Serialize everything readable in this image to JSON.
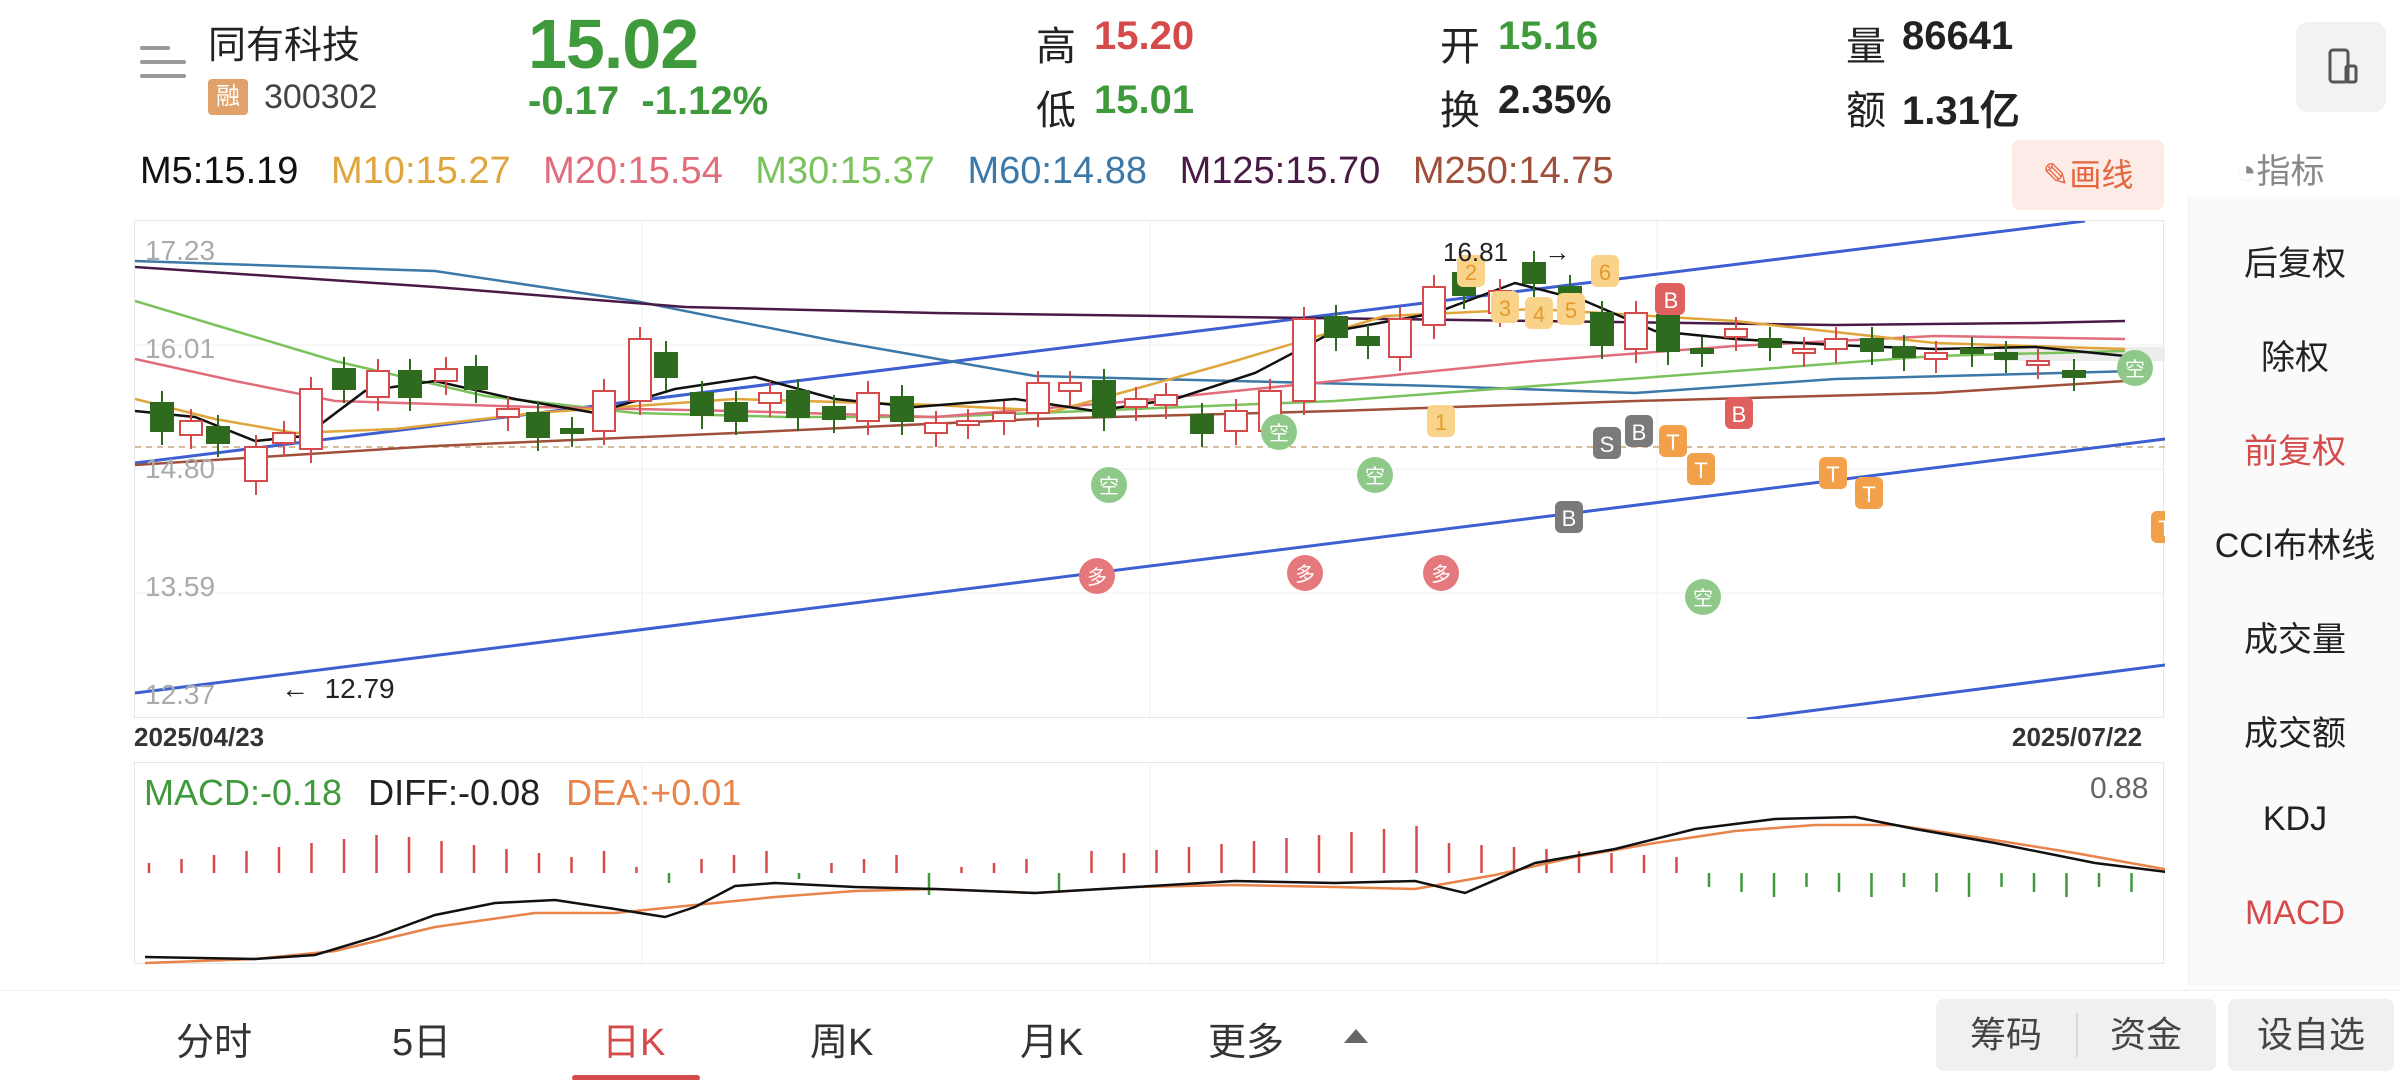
{
  "header": {
    "stock_name": "同有科技",
    "badge": "融",
    "stock_code": "300302",
    "price": "15.02",
    "change": "-0.17",
    "change_pct": "-1.12%",
    "high_label": "高",
    "high_value": "15.20",
    "low_label": "低",
    "low_value": "15.01",
    "open_label": "开",
    "open_value": "15.16",
    "turnover_label": "换",
    "turnover_value": "2.35%",
    "volume_label": "量",
    "volume_value": "86641",
    "amount_label": "额",
    "amount_value": "1.31亿"
  },
  "ma": {
    "m5": "M5:15.19",
    "m10": "M10:15.27",
    "m20": "M20:15.54",
    "m30": "M30:15.37",
    "m60": "M60:14.88",
    "m125": "M125:15.70",
    "m250": "M250:14.75"
  },
  "draw_button": "画线",
  "indicator_header": "指标",
  "right_panel": [
    {
      "label": "后复权",
      "active": false
    },
    {
      "label": "除权",
      "active": false
    },
    {
      "label": "前复权",
      "active": true
    },
    {
      "label": "CCI布林线",
      "active": false
    },
    {
      "label": "成交量",
      "active": false
    },
    {
      "label": "成交额",
      "active": false
    },
    {
      "label": "KDJ",
      "active": false
    },
    {
      "label": "MACD",
      "active": true
    }
  ],
  "kline": {
    "y_labels": [
      "17.23",
      "16.01",
      "14.80",
      "13.59",
      "12.37"
    ],
    "start_date": "2025/04/23",
    "end_date": "2025/07/22",
    "low_marker": "12.79",
    "high_marker": "16.81"
  },
  "macd": {
    "macd": "MACD:-0.18",
    "diff": "DIFF:-0.08",
    "dea": "DEA:+0.01",
    "max": "0.88"
  },
  "tabs": [
    {
      "label": "分时",
      "active": false
    },
    {
      "label": "5日",
      "active": false
    },
    {
      "label": "日K",
      "active": true
    },
    {
      "label": "周K",
      "active": false
    },
    {
      "label": "月K",
      "active": false
    },
    {
      "label": "更多",
      "active": false
    }
  ],
  "bottom_buttons": {
    "chips": "筹码",
    "funds": "资金",
    "watchlist": "设自选"
  },
  "colors": {
    "up": "#d54a4a",
    "down": "#2f6b1e",
    "accent": "#e4663f"
  }
}
